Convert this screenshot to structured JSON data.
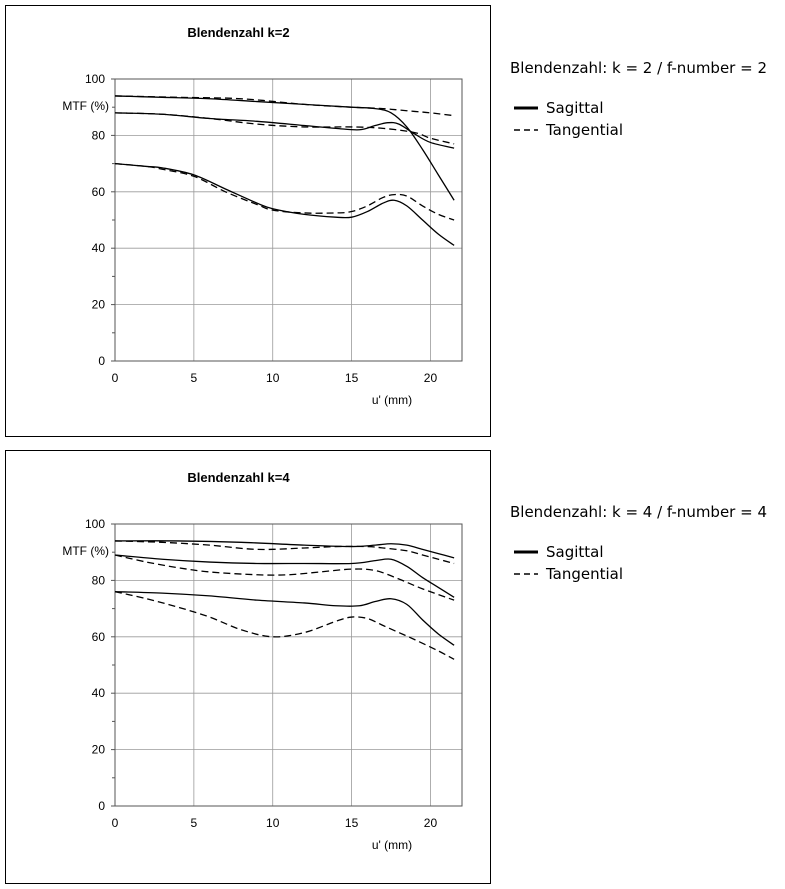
{
  "charts": [
    {
      "side_text": "Blendenzahl: k = 2 / f-number = 2",
      "legend": {
        "sagittal": "Sagittal",
        "tangential": "Tangential"
      }
    },
    {
      "side_text": "Blendenzahl: k = 4 / f-number = 4",
      "legend": {
        "sagittal": "Sagittal",
        "tangential": "Tangential"
      }
    }
  ],
  "chart_data": [
    {
      "type": "line",
      "title": "Blendenzahl k=2",
      "xlabel": "u' (mm)",
      "ylabel": "MTF (%)",
      "xlim": [
        0,
        22
      ],
      "ylim": [
        0,
        100
      ],
      "xticks": [
        "0",
        "5",
        "10",
        "15",
        "20"
      ],
      "yticks": [
        "0",
        "20",
        "40",
        "60",
        "80",
        "100"
      ],
      "grid": true,
      "series": [
        {
          "style": "solid",
          "x": [
            0,
            3,
            6,
            9,
            12,
            15,
            16.5,
            17.5,
            18.5,
            19.5,
            20.5,
            21.5
          ],
          "y": [
            94,
            93.5,
            93,
            92,
            91,
            90,
            89.5,
            88,
            83,
            75,
            66,
            57
          ]
        },
        {
          "style": "dashed",
          "x": [
            0,
            4,
            8,
            12,
            15,
            17,
            18,
            19,
            20,
            21.5
          ],
          "y": [
            94,
            93.5,
            93,
            91,
            90,
            89.5,
            89,
            88.5,
            88,
            87
          ]
        },
        {
          "style": "solid",
          "x": [
            0,
            3,
            6,
            9,
            12,
            14,
            15.5,
            16.5,
            17.3,
            18,
            19,
            20,
            21.5
          ],
          "y": [
            88,
            87.5,
            86,
            85,
            83.5,
            82.5,
            82,
            83.5,
            84.5,
            84,
            80.5,
            77.5,
            75.5
          ]
        },
        {
          "style": "dashed",
          "x": [
            0,
            3,
            6,
            9,
            12,
            15,
            17,
            19,
            20,
            21.5
          ],
          "y": [
            88,
            87.5,
            86,
            84,
            83,
            83,
            82.5,
            81,
            79,
            77
          ]
        },
        {
          "style": "solid",
          "x": [
            0,
            2,
            3,
            5,
            7,
            9,
            10,
            12,
            14,
            15,
            16,
            17,
            17.7,
            18.5,
            19.5,
            20.5,
            21.5
          ],
          "y": [
            70,
            69,
            68.5,
            66,
            61,
            56,
            54,
            52,
            51,
            51,
            53,
            56,
            57,
            55,
            50,
            45,
            41
          ]
        },
        {
          "style": "dashed",
          "x": [
            0,
            2,
            3,
            5,
            7,
            9,
            10,
            12,
            14,
            15,
            16,
            17,
            17.7,
            18.5,
            19.5,
            20.5,
            21.5
          ],
          "y": [
            70,
            69,
            68,
            65.5,
            60,
            55.5,
            53.5,
            52.5,
            52.5,
            53,
            55,
            58,
            59,
            58.5,
            55,
            52,
            50
          ]
        }
      ]
    },
    {
      "type": "line",
      "title": "Blendenzahl k=4",
      "xlabel": "u' (mm)",
      "ylabel": "MTF (%)",
      "xlim": [
        0,
        22
      ],
      "ylim": [
        0,
        100
      ],
      "xticks": [
        "0",
        "5",
        "10",
        "15",
        "20"
      ],
      "yticks": [
        "0",
        "20",
        "40",
        "60",
        "80",
        "100"
      ],
      "grid": true,
      "series": [
        {
          "style": "solid",
          "x": [
            0,
            4,
            8,
            12,
            15,
            16.5,
            17.5,
            18.5,
            19.5,
            20.5,
            21.5
          ],
          "y": [
            94,
            94,
            93.5,
            92.5,
            92,
            92.5,
            93,
            92.5,
            91,
            89.5,
            88
          ]
        },
        {
          "style": "dashed",
          "x": [
            0,
            3,
            6,
            9,
            12,
            14,
            16,
            17,
            18.5,
            19.5,
            20.5,
            21.5
          ],
          "y": [
            94,
            93.5,
            92.5,
            91,
            91.5,
            92,
            92,
            91.5,
            90.5,
            89,
            87.5,
            86
          ]
        },
        {
          "style": "solid",
          "x": [
            0,
            3,
            6,
            9,
            12,
            15,
            16.5,
            17.5,
            18.5,
            19.5,
            20.5,
            21.5
          ],
          "y": [
            89,
            87.5,
            86.5,
            86,
            86,
            86,
            87,
            87.5,
            85,
            81,
            77.5,
            74
          ]
        },
        {
          "style": "dashed",
          "x": [
            0,
            2,
            4,
            6,
            9,
            11,
            13,
            15,
            16.5,
            18,
            19.5,
            21.5
          ],
          "y": [
            89,
            86.5,
            84.5,
            83,
            82,
            82,
            83,
            84,
            83.5,
            80.5,
            77,
            73
          ]
        },
        {
          "style": "solid",
          "x": [
            0,
            3,
            6,
            9,
            12,
            14,
            15.5,
            16.5,
            17.5,
            18.5,
            19.5,
            20.5,
            21.5
          ],
          "y": [
            76,
            75.5,
            74.5,
            73,
            72,
            71,
            71,
            72.5,
            73.5,
            71.5,
            66,
            61,
            57
          ]
        },
        {
          "style": "dashed",
          "x": [
            0,
            2,
            4,
            6,
            8,
            10,
            12,
            14,
            15,
            16,
            17,
            18,
            19,
            20.5,
            21.5
          ],
          "y": [
            76,
            73.5,
            70.5,
            67,
            62.5,
            60,
            61.5,
            65.5,
            67,
            66.5,
            64,
            61.5,
            59,
            55,
            52
          ]
        }
      ]
    }
  ]
}
